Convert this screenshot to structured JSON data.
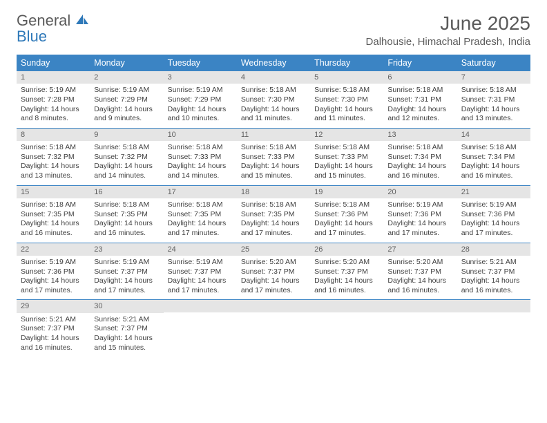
{
  "brand": {
    "line1": "General",
    "line2": "Blue"
  },
  "title": "June 2025",
  "location": "Dalhousie, Himachal Pradesh, India",
  "colors": {
    "header_bg": "#3b84c4",
    "header_text": "#ffffff",
    "daynum_bg": "#e5e5e5",
    "border": "#3b84c4",
    "text": "#3f3f3f",
    "title_text": "#5a5a5a"
  },
  "day_names": [
    "Sunday",
    "Monday",
    "Tuesday",
    "Wednesday",
    "Thursday",
    "Friday",
    "Saturday"
  ],
  "weeks": [
    [
      {
        "n": "1",
        "sr": "Sunrise: 5:19 AM",
        "ss": "Sunset: 7:28 PM",
        "d1": "Daylight: 14 hours",
        "d2": "and 8 minutes."
      },
      {
        "n": "2",
        "sr": "Sunrise: 5:19 AM",
        "ss": "Sunset: 7:29 PM",
        "d1": "Daylight: 14 hours",
        "d2": "and 9 minutes."
      },
      {
        "n": "3",
        "sr": "Sunrise: 5:19 AM",
        "ss": "Sunset: 7:29 PM",
        "d1": "Daylight: 14 hours",
        "d2": "and 10 minutes."
      },
      {
        "n": "4",
        "sr": "Sunrise: 5:18 AM",
        "ss": "Sunset: 7:30 PM",
        "d1": "Daylight: 14 hours",
        "d2": "and 11 minutes."
      },
      {
        "n": "5",
        "sr": "Sunrise: 5:18 AM",
        "ss": "Sunset: 7:30 PM",
        "d1": "Daylight: 14 hours",
        "d2": "and 11 minutes."
      },
      {
        "n": "6",
        "sr": "Sunrise: 5:18 AM",
        "ss": "Sunset: 7:31 PM",
        "d1": "Daylight: 14 hours",
        "d2": "and 12 minutes."
      },
      {
        "n": "7",
        "sr": "Sunrise: 5:18 AM",
        "ss": "Sunset: 7:31 PM",
        "d1": "Daylight: 14 hours",
        "d2": "and 13 minutes."
      }
    ],
    [
      {
        "n": "8",
        "sr": "Sunrise: 5:18 AM",
        "ss": "Sunset: 7:32 PM",
        "d1": "Daylight: 14 hours",
        "d2": "and 13 minutes."
      },
      {
        "n": "9",
        "sr": "Sunrise: 5:18 AM",
        "ss": "Sunset: 7:32 PM",
        "d1": "Daylight: 14 hours",
        "d2": "and 14 minutes."
      },
      {
        "n": "10",
        "sr": "Sunrise: 5:18 AM",
        "ss": "Sunset: 7:33 PM",
        "d1": "Daylight: 14 hours",
        "d2": "and 14 minutes."
      },
      {
        "n": "11",
        "sr": "Sunrise: 5:18 AM",
        "ss": "Sunset: 7:33 PM",
        "d1": "Daylight: 14 hours",
        "d2": "and 15 minutes."
      },
      {
        "n": "12",
        "sr": "Sunrise: 5:18 AM",
        "ss": "Sunset: 7:33 PM",
        "d1": "Daylight: 14 hours",
        "d2": "and 15 minutes."
      },
      {
        "n": "13",
        "sr": "Sunrise: 5:18 AM",
        "ss": "Sunset: 7:34 PM",
        "d1": "Daylight: 14 hours",
        "d2": "and 16 minutes."
      },
      {
        "n": "14",
        "sr": "Sunrise: 5:18 AM",
        "ss": "Sunset: 7:34 PM",
        "d1": "Daylight: 14 hours",
        "d2": "and 16 minutes."
      }
    ],
    [
      {
        "n": "15",
        "sr": "Sunrise: 5:18 AM",
        "ss": "Sunset: 7:35 PM",
        "d1": "Daylight: 14 hours",
        "d2": "and 16 minutes."
      },
      {
        "n": "16",
        "sr": "Sunrise: 5:18 AM",
        "ss": "Sunset: 7:35 PM",
        "d1": "Daylight: 14 hours",
        "d2": "and 16 minutes."
      },
      {
        "n": "17",
        "sr": "Sunrise: 5:18 AM",
        "ss": "Sunset: 7:35 PM",
        "d1": "Daylight: 14 hours",
        "d2": "and 17 minutes."
      },
      {
        "n": "18",
        "sr": "Sunrise: 5:18 AM",
        "ss": "Sunset: 7:35 PM",
        "d1": "Daylight: 14 hours",
        "d2": "and 17 minutes."
      },
      {
        "n": "19",
        "sr": "Sunrise: 5:18 AM",
        "ss": "Sunset: 7:36 PM",
        "d1": "Daylight: 14 hours",
        "d2": "and 17 minutes."
      },
      {
        "n": "20",
        "sr": "Sunrise: 5:19 AM",
        "ss": "Sunset: 7:36 PM",
        "d1": "Daylight: 14 hours",
        "d2": "and 17 minutes."
      },
      {
        "n": "21",
        "sr": "Sunrise: 5:19 AM",
        "ss": "Sunset: 7:36 PM",
        "d1": "Daylight: 14 hours",
        "d2": "and 17 minutes."
      }
    ],
    [
      {
        "n": "22",
        "sr": "Sunrise: 5:19 AM",
        "ss": "Sunset: 7:36 PM",
        "d1": "Daylight: 14 hours",
        "d2": "and 17 minutes."
      },
      {
        "n": "23",
        "sr": "Sunrise: 5:19 AM",
        "ss": "Sunset: 7:37 PM",
        "d1": "Daylight: 14 hours",
        "d2": "and 17 minutes."
      },
      {
        "n": "24",
        "sr": "Sunrise: 5:19 AM",
        "ss": "Sunset: 7:37 PM",
        "d1": "Daylight: 14 hours",
        "d2": "and 17 minutes."
      },
      {
        "n": "25",
        "sr": "Sunrise: 5:20 AM",
        "ss": "Sunset: 7:37 PM",
        "d1": "Daylight: 14 hours",
        "d2": "and 17 minutes."
      },
      {
        "n": "26",
        "sr": "Sunrise: 5:20 AM",
        "ss": "Sunset: 7:37 PM",
        "d1": "Daylight: 14 hours",
        "d2": "and 16 minutes."
      },
      {
        "n": "27",
        "sr": "Sunrise: 5:20 AM",
        "ss": "Sunset: 7:37 PM",
        "d1": "Daylight: 14 hours",
        "d2": "and 16 minutes."
      },
      {
        "n": "28",
        "sr": "Sunrise: 5:21 AM",
        "ss": "Sunset: 7:37 PM",
        "d1": "Daylight: 14 hours",
        "d2": "and 16 minutes."
      }
    ],
    [
      {
        "n": "29",
        "sr": "Sunrise: 5:21 AM",
        "ss": "Sunset: 7:37 PM",
        "d1": "Daylight: 14 hours",
        "d2": "and 16 minutes."
      },
      {
        "n": "30",
        "sr": "Sunrise: 5:21 AM",
        "ss": "Sunset: 7:37 PM",
        "d1": "Daylight: 14 hours",
        "d2": "and 15 minutes."
      },
      null,
      null,
      null,
      null,
      null
    ]
  ]
}
